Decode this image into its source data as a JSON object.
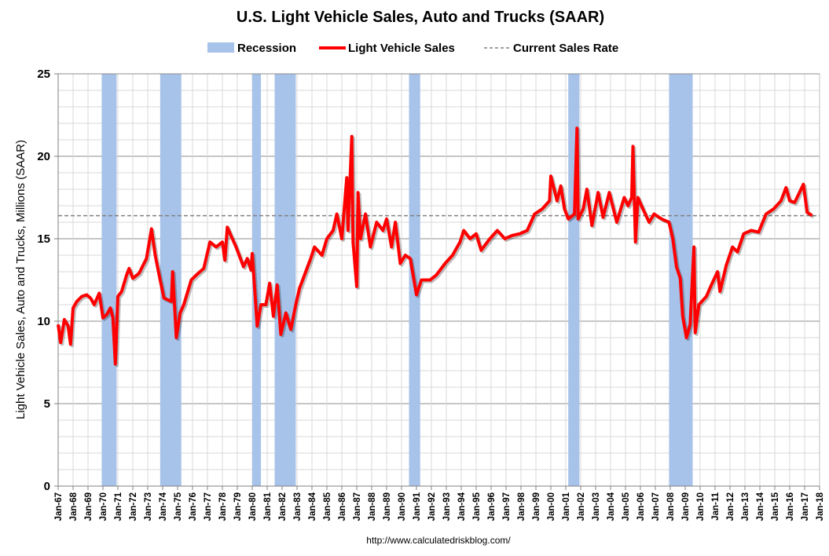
{
  "chart_data": {
    "type": "line",
    "title": "U.S. Light Vehicle Sales, Auto and Trucks (SAAR)",
    "ylabel": "Light Vehicle Sales, Auto and Trucks, Millions (SAAR)",
    "xlabel": "",
    "ylim": [
      0,
      25
    ],
    "xlim": [
      "1967-01",
      "2018-01"
    ],
    "yticks": [
      0,
      5,
      10,
      15,
      20,
      25
    ],
    "xtick_labels": [
      "Jan-67",
      "Jan-68",
      "Jan-69",
      "Jan-70",
      "Jan-71",
      "Jan-72",
      "Jan-73",
      "Jan-74",
      "Jan-75",
      "Jan-76",
      "Jan-77",
      "Jan-78",
      "Jan-79",
      "Jan-80",
      "Jan-81",
      "Jan-82",
      "Jan-83",
      "Jan-84",
      "Jan-85",
      "Jan-86",
      "Jan-87",
      "Jan-88",
      "Jan-89",
      "Jan-90",
      "Jan-91",
      "Jan-92",
      "Jan-93",
      "Jan-94",
      "Jan-95",
      "Jan-96",
      "Jan-97",
      "Jan-98",
      "Jan-99",
      "Jan-00",
      "Jan-01",
      "Jan-02",
      "Jan-03",
      "Jan-04",
      "Jan-05",
      "Jan-06",
      "Jan-07",
      "Jan-08",
      "Jan-09",
      "Jan-10",
      "Jan-11",
      "Jan-12",
      "Jan-13",
      "Jan-14",
      "Jan-15",
      "Jan-16",
      "Jan-17",
      "Jan-18"
    ],
    "grid": true,
    "legend_placement": "top",
    "legend": [
      "Recession",
      "Light Vehicle Sales",
      "Current Sales Rate"
    ],
    "colors": {
      "recession": "#a7c3e9",
      "sales": "#ff0000",
      "current": "#808080"
    },
    "recessions": [
      [
        "1969-12",
        "1970-11"
      ],
      [
        "1973-11",
        "1975-03"
      ],
      [
        "1980-01",
        "1980-07"
      ],
      [
        "1981-07",
        "1982-11"
      ],
      [
        "1990-07",
        "1991-03"
      ],
      [
        "2001-03",
        "2001-11"
      ],
      [
        "2007-12",
        "2009-06"
      ]
    ],
    "current_sales_rate": 16.4,
    "series": [
      {
        "name": "Light Vehicle Sales",
        "x": [
          "1967-01",
          "1967-03",
          "1967-06",
          "1967-09",
          "1967-11",
          "1968-01",
          "1968-04",
          "1968-08",
          "1968-12",
          "1969-03",
          "1969-06",
          "1969-10",
          "1970-01",
          "1970-04",
          "1970-07",
          "1970-09",
          "1970-11",
          "1971-01",
          "1971-04",
          "1971-08",
          "1971-10",
          "1972-01",
          "1972-06",
          "1972-12",
          "1973-04",
          "1973-07",
          "1973-11",
          "1974-02",
          "1974-08",
          "1974-09",
          "1974-12",
          "1975-03",
          "1975-06",
          "1975-12",
          "1976-04",
          "1976-10",
          "1977-03",
          "1977-08",
          "1978-01",
          "1978-03",
          "1978-05",
          "1978-09",
          "1978-12",
          "1979-06",
          "1979-09",
          "1979-12",
          "1980-01",
          "1980-05",
          "1980-08",
          "1980-12",
          "1981-03",
          "1981-06",
          "1981-09",
          "1981-12",
          "1982-04",
          "1982-08",
          "1982-12",
          "1983-03",
          "1983-08",
          "1983-12",
          "1984-03",
          "1984-09",
          "1985-01",
          "1985-06",
          "1985-09",
          "1986-01",
          "1986-05",
          "1986-06",
          "1986-09",
          "1986-10",
          "1987-01",
          "1987-02",
          "1987-04",
          "1987-08",
          "1987-12",
          "1988-05",
          "1988-10",
          "1989-01",
          "1989-05",
          "1989-08",
          "1989-12",
          "1990-04",
          "1990-08",
          "1991-01",
          "1991-05",
          "1991-12",
          "1992-05",
          "1992-12",
          "1993-06",
          "1993-12",
          "1994-03",
          "1994-08",
          "1995-01",
          "1995-05",
          "1995-12",
          "1996-06",
          "1996-12",
          "1997-06",
          "1997-12",
          "1998-06",
          "1998-12",
          "1999-06",
          "1999-12",
          "2000-01",
          "2000-06",
          "2000-09",
          "2000-12",
          "2001-03",
          "2001-08",
          "2001-10",
          "2001-11",
          "2002-03",
          "2002-06",
          "2002-10",
          "2003-03",
          "2003-07",
          "2003-12",
          "2004-06",
          "2004-12",
          "2005-03",
          "2005-06",
          "2005-07",
          "2005-09",
          "2005-11",
          "2006-03",
          "2006-08",
          "2006-12",
          "2007-06",
          "2007-12",
          "2008-03",
          "2008-06",
          "2008-09",
          "2008-11",
          "2009-02",
          "2009-05",
          "2009-08",
          "2009-09",
          "2009-12",
          "2010-06",
          "2010-10",
          "2011-03",
          "2011-05",
          "2011-10",
          "2012-03",
          "2012-07",
          "2012-12",
          "2013-06",
          "2013-12",
          "2014-06",
          "2014-12",
          "2015-06",
          "2015-10",
          "2016-01",
          "2016-05",
          "2016-12",
          "2017-03",
          "2017-07"
        ],
        "values": [
          9.8,
          8.7,
          10.1,
          9.7,
          8.6,
          10.8,
          11.2,
          11.5,
          11.6,
          11.4,
          11.0,
          11.7,
          10.2,
          10.4,
          10.8,
          10.2,
          7.4,
          11.5,
          11.8,
          12.8,
          13.2,
          12.6,
          12.9,
          13.8,
          15.6,
          14.0,
          12.5,
          11.4,
          11.2,
          13.0,
          9.0,
          10.5,
          11.0,
          12.5,
          12.8,
          13.2,
          14.8,
          14.5,
          14.8,
          13.7,
          15.7,
          15.0,
          14.5,
          13.3,
          13.8,
          13.1,
          14.1,
          9.7,
          11.0,
          11.0,
          12.3,
          10.3,
          12.2,
          9.2,
          10.5,
          9.5,
          11.0,
          12.0,
          13.0,
          13.8,
          14.5,
          14.0,
          15.0,
          15.5,
          16.5,
          15.0,
          18.7,
          15.5,
          21.2,
          14.8,
          12.1,
          17.8,
          15.0,
          16.5,
          14.5,
          16.0,
          15.5,
          16.2,
          14.5,
          16.0,
          13.5,
          14.0,
          13.8,
          11.6,
          12.5,
          12.5,
          12.8,
          13.5,
          14.0,
          14.8,
          15.5,
          15.0,
          15.3,
          14.3,
          15.0,
          15.5,
          15.0,
          15.2,
          15.3,
          15.5,
          16.5,
          16.8,
          17.3,
          18.8,
          17.3,
          18.2,
          16.8,
          16.2,
          16.5,
          21.7,
          16.2,
          16.8,
          18.0,
          15.8,
          17.8,
          16.3,
          17.8,
          16.0,
          17.5,
          17.0,
          17.5,
          20.6,
          14.8,
          17.5,
          16.8,
          16.0,
          16.5,
          16.2,
          16.0,
          15.0,
          13.3,
          12.6,
          10.3,
          9.0,
          9.8,
          14.5,
          9.3,
          11.0,
          11.5,
          12.2,
          13.0,
          11.8,
          13.4,
          14.5,
          14.2,
          15.3,
          15.5,
          15.4,
          16.5,
          16.8,
          17.3,
          18.1,
          17.3,
          17.2,
          18.3,
          16.6,
          16.4
        ]
      }
    ],
    "source": "http://www.calculatedriskblog.com/"
  }
}
